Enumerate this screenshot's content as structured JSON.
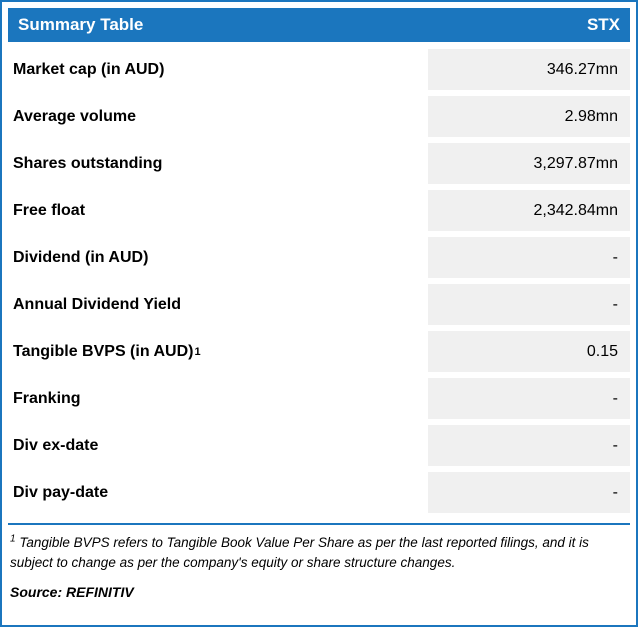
{
  "header": {
    "title": "Summary Table",
    "ticker": "STX"
  },
  "rows": [
    {
      "label": "Market cap (in AUD)",
      "value": "346.27mn"
    },
    {
      "label": "Average volume",
      "value": "2.98mn"
    },
    {
      "label": "Shares outstanding",
      "value": "3,297.87mn"
    },
    {
      "label": "Free float",
      "value": "2,342.84mn"
    },
    {
      "label": "Dividend (in AUD)",
      "value": "-"
    },
    {
      "label": "Annual Dividend Yield",
      "value": "-"
    },
    {
      "label": "Tangible BVPS (in AUD)",
      "sup": "1",
      "value": "0.15"
    },
    {
      "label": "Franking",
      "value": "-"
    },
    {
      "label": "Div ex-date",
      "value": "-"
    },
    {
      "label": "Div pay-date",
      "value": "-"
    }
  ],
  "footnote": {
    "sup": "1",
    "text": " Tangible BVPS refers to Tangible Book Value Per Share as per the last reported filings, and it is subject to change as per the company's equity or share structure changes."
  },
  "source": "Source: REFINITIV",
  "colors": {
    "accent": "#1b76be",
    "value_cell_bg": "#f0f0f0"
  }
}
